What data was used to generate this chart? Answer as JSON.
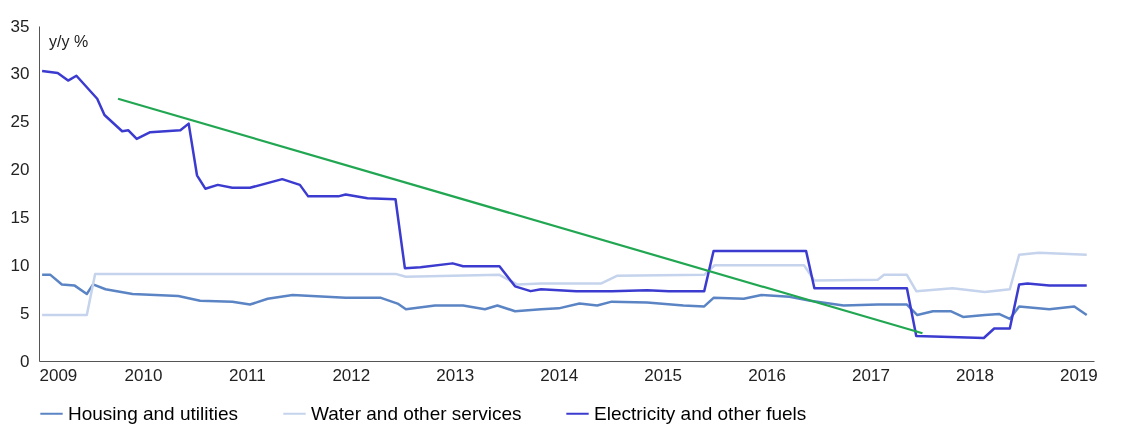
{
  "chart_data": {
    "type": "line",
    "ylabel": "y/y %",
    "xlim": [
      2009,
      2019.15
    ],
    "xticks": [
      2009,
      2010,
      2011,
      2012,
      2013,
      2014,
      2015,
      2016,
      2017,
      2018,
      2019
    ],
    "ylim": [
      0,
      35
    ],
    "yticks": [
      0,
      5,
      10,
      15,
      20,
      25,
      30,
      35
    ],
    "grid": false,
    "legend": "bottom",
    "marker": "none",
    "line_style": "solid",
    "series": [
      {
        "name": "Housing and utilities",
        "color": "#5b84c4",
        "x": [
          2009.03,
          2009.11,
          2009.22,
          2009.34,
          2009.46,
          2009.52,
          2009.64,
          2009.9,
          2010.34,
          2010.55,
          2010.86,
          2011.03,
          2011.2,
          2011.44,
          2011.95,
          2012.29,
          2012.45,
          2012.53,
          2012.81,
          2013.08,
          2013.29,
          2013.41,
          2013.58,
          2013.83,
          2014.0,
          2014.2,
          2014.37,
          2014.51,
          2014.85,
          2015.2,
          2015.4,
          2015.49,
          2015.78,
          2015.95,
          2016.22,
          2016.42,
          2016.74,
          2017.07,
          2017.35,
          2017.45,
          2017.6,
          2017.77,
          2017.89,
          2018.1,
          2018.24,
          2018.34,
          2018.43,
          2018.72,
          2018.96,
          2019.08
        ],
        "values": [
          9.0,
          9.0,
          8.0,
          7.9,
          7.0,
          8.0,
          7.5,
          7.0,
          6.8,
          6.3,
          6.2,
          5.9,
          6.5,
          6.9,
          6.6,
          6.6,
          6.0,
          5.4,
          5.8,
          5.8,
          5.4,
          5.8,
          5.2,
          5.4,
          5.5,
          6.0,
          5.8,
          6.2,
          6.1,
          5.8,
          5.7,
          6.6,
          6.5,
          6.9,
          6.7,
          6.3,
          5.8,
          5.9,
          5.9,
          4.8,
          5.2,
          5.2,
          4.6,
          4.8,
          4.9,
          4.4,
          5.7,
          5.4,
          5.7,
          4.8
        ]
      },
      {
        "name": "Water and other services",
        "color": "#c5d3ec",
        "x": [
          2009.03,
          2009.46,
          2009.54,
          2012.43,
          2012.53,
          2013.43,
          2013.6,
          2013.83,
          2014.41,
          2014.56,
          2015.4,
          2015.5,
          2016.36,
          2016.46,
          2017.07,
          2017.13,
          2017.35,
          2017.44,
          2017.79,
          2018.1,
          2018.34,
          2018.43,
          2018.62,
          2019.08
        ],
        "values": [
          4.8,
          4.8,
          9.1,
          9.1,
          8.8,
          9.0,
          8.0,
          8.1,
          8.1,
          8.9,
          9.0,
          10.0,
          10.0,
          8.4,
          8.5,
          9.0,
          9.0,
          7.3,
          7.6,
          7.2,
          7.5,
          11.1,
          11.3,
          11.1
        ]
      },
      {
        "name": "Electricity and other fuels",
        "color": "#3b3bd0",
        "x": [
          2009.03,
          2009.18,
          2009.28,
          2009.36,
          2009.56,
          2009.63,
          2009.8,
          2009.86,
          2009.94,
          2010.07,
          2010.36,
          2010.44,
          2010.52,
          2010.6,
          2010.72,
          2010.86,
          2011.03,
          2011.34,
          2011.51,
          2011.59,
          2011.88,
          2011.95,
          2012.16,
          2012.43,
          2012.52,
          2012.67,
          2012.98,
          2013.08,
          2013.43,
          2013.58,
          2013.73,
          2013.83,
          2014.17,
          2014.51,
          2014.85,
          2015.06,
          2015.4,
          2015.49,
          2016.38,
          2016.46,
          2017.35,
          2017.44,
          2018.09,
          2018.19,
          2018.34,
          2018.43,
          2018.51,
          2018.72,
          2019.08
        ],
        "values": [
          30.3,
          30.1,
          29.3,
          29.8,
          27.4,
          25.7,
          24.0,
          24.1,
          23.2,
          23.9,
          24.1,
          24.8,
          19.4,
          18.0,
          18.4,
          18.1,
          18.1,
          19.0,
          18.4,
          17.2,
          17.2,
          17.4,
          17.0,
          16.9,
          9.7,
          9.8,
          10.2,
          9.9,
          9.9,
          7.8,
          7.3,
          7.5,
          7.3,
          7.3,
          7.4,
          7.3,
          7.3,
          11.5,
          11.5,
          7.6,
          7.6,
          2.6,
          2.4,
          3.4,
          3.4,
          8.0,
          8.1,
          7.9,
          7.9
        ]
      },
      {
        "type": "line",
        "color": "#21a651",
        "x": [
          2009.76,
          2017.5
        ],
        "values": [
          27.4,
          2.9
        ]
      }
    ]
  }
}
